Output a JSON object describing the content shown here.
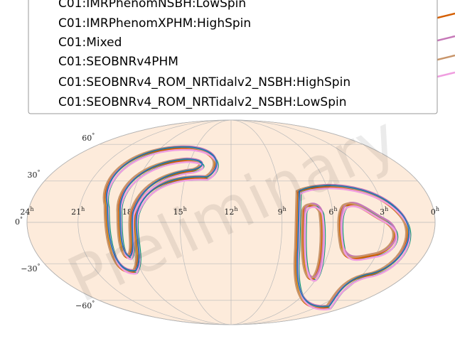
{
  "chart_data": {
    "type": "skymap",
    "series": [
      {
        "name": "C01:IMRPhenomNSBH:LowSpin",
        "color": "#daa520"
      },
      {
        "name": "C01:IMRPhenomXPHM:HighSpin",
        "color": "#009e73"
      },
      {
        "name": "C01:Mixed",
        "color": "#d55e00"
      },
      {
        "name": "C01:SEOBNRv4PHM",
        "color": "#c678b8"
      },
      {
        "name": "C01:SEOBNRv4_ROM_NRTidalv2_NSBH:HighSpin",
        "color": "#c8956a"
      },
      {
        "name": "C01:SEOBNRv4_ROM_NRTidalv2_NSBH:LowSpin",
        "color": "#f09ee0"
      }
    ],
    "xlim": [
      24,
      0
    ],
    "ylim": [
      -90,
      90
    ],
    "xticks": [
      {
        "value": 24,
        "label": "24h"
      },
      {
        "value": 21,
        "label": "21h"
      },
      {
        "value": 18,
        "label": "18h"
      },
      {
        "value": 15,
        "label": "15h"
      },
      {
        "value": 12,
        "label": "12h"
      },
      {
        "value": 9,
        "label": "9h"
      },
      {
        "value": 6,
        "label": "6h"
      },
      {
        "value": 3,
        "label": "3h"
      },
      {
        "value": 0,
        "label": "0h"
      }
    ],
    "yticks": [
      {
        "value": 60,
        "label": "60°"
      },
      {
        "value": 30,
        "label": "30°"
      },
      {
        "value": 0,
        "label": "0°"
      },
      {
        "value": -30,
        "label": "−30°"
      },
      {
        "value": -60,
        "label": "−60°"
      }
    ],
    "watermark": "Preliminary"
  }
}
